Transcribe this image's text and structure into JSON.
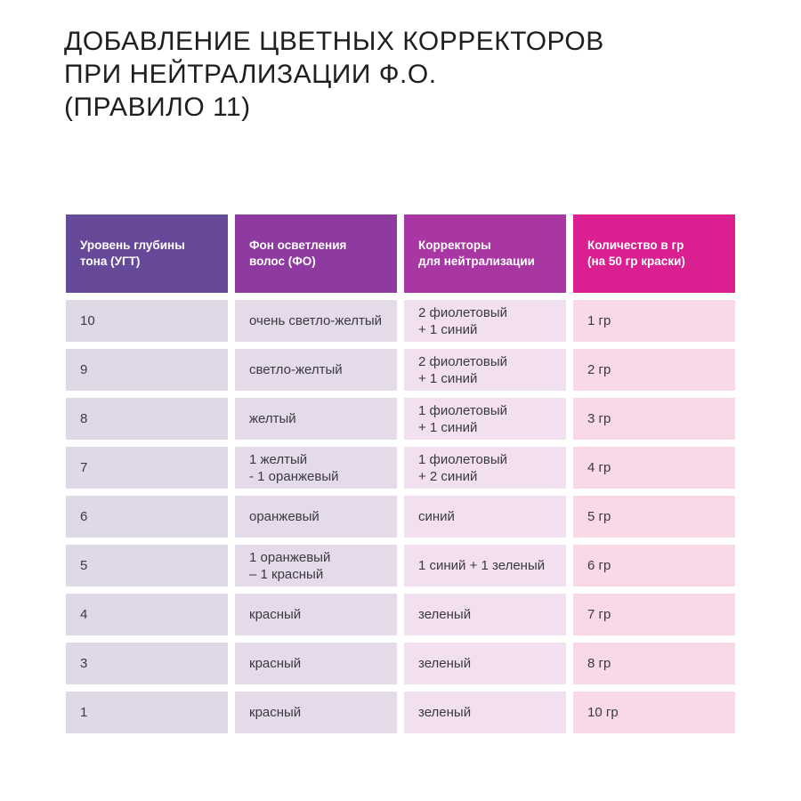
{
  "title": {
    "line1": "ДОБАВЛЕНИЕ ЦВЕТНЫХ КОРРЕКТОРОВ",
    "line2": "ПРИ НЕЙТРАЛИЗАЦИИ Ф.О.",
    "line3": "(ПРАВИЛО 11)"
  },
  "chart_data": {
    "type": "table",
    "title": "ДОБАВЛЕНИЕ ЦВЕТНЫХ КОРРЕКТОРОВ ПРИ НЕЙТРАЛИЗАЦИИ Ф.О. (ПРАВИЛО 11)",
    "columns": [
      {
        "label": "Уровень глубины\nтона (УГТ)",
        "header_color": "#67499a",
        "cell_color": "#dfd9e7"
      },
      {
        "label": "Фон осветления\nволос (ФО)",
        "header_color": "#8e3aa0",
        "cell_color": "#e4daea"
      },
      {
        "label": "Корректоры\nдля нейтрализации",
        "header_color": "#a837a4",
        "cell_color": "#f2e0f0"
      },
      {
        "label": "Количество в гр\n(на 50 гр краски)",
        "header_color": "#da2090",
        "cell_color": "#f9d8e7"
      }
    ],
    "rows": [
      {
        "cells": [
          "10",
          "очень светло-желтый",
          "2 фиолетовый\n+ 1 синий",
          "1 гр"
        ]
      },
      {
        "cells": [
          "9",
          "светло-желтый",
          "2 фиолетовый\n+ 1 синий",
          "2 гр"
        ]
      },
      {
        "cells": [
          "8",
          "желтый",
          "1 фиолетовый\n+ 1 синий",
          "3 гр"
        ]
      },
      {
        "cells": [
          "7",
          "1 желтый\n- 1 оранжевый",
          "1 фиолетовый\n+ 2 синий",
          "4 гр"
        ]
      },
      {
        "cells": [
          "6",
          "оранжевый",
          "синий",
          "5 гр"
        ]
      },
      {
        "cells": [
          "5",
          "1 оранжевый\n– 1 красный",
          "1 синий + 1 зеленый",
          "6 гр"
        ]
      },
      {
        "cells": [
          "4",
          "красный",
          "зеленый",
          "7 гр"
        ]
      },
      {
        "cells": [
          "3",
          "красный",
          "зеленый",
          "8 гр"
        ]
      },
      {
        "cells": [
          "1",
          "красный",
          "зеленый",
          "10 гр"
        ]
      }
    ]
  }
}
